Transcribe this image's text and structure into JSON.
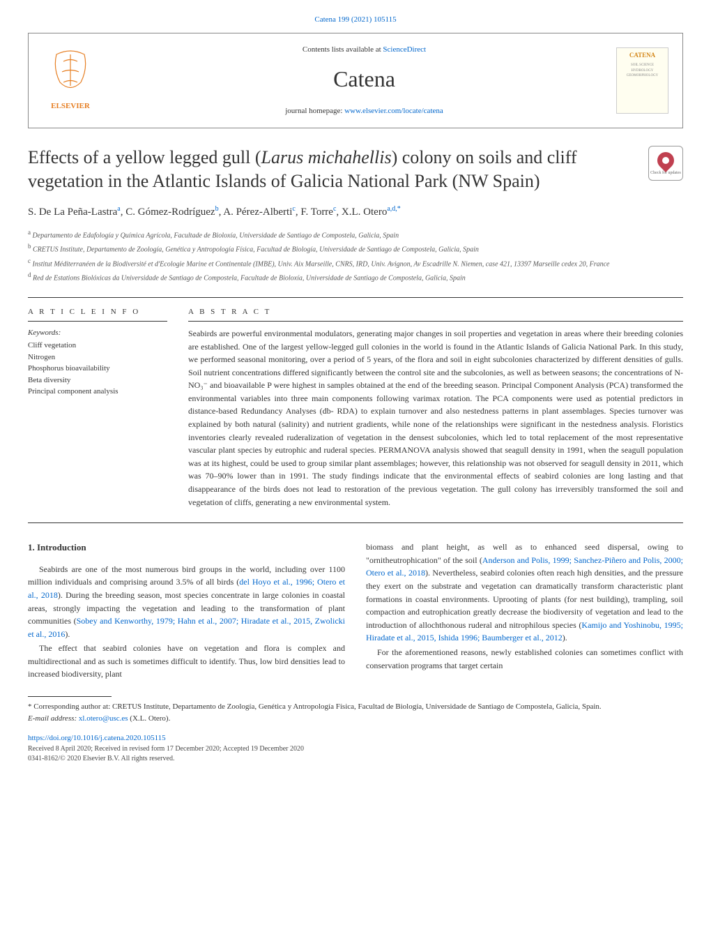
{
  "topRef": "Catena 199 (2021) 105115",
  "header": {
    "contentsPrefix": "Contents lists available at ",
    "contentsLink": "ScienceDirect",
    "journal": "Catena",
    "homepagePrefix": "journal homepage: ",
    "homepageLink": "www.elsevier.com/locate/catena",
    "publisherLogo": "ELSEVIER",
    "thumbTitle": "CATENA"
  },
  "checkUpdates": "Check for updates",
  "title": {
    "pre": "Effects of a yellow legged gull (",
    "italic": "Larus michahellis",
    "post": ") colony on soils and cliff vegetation in the Atlantic Islands of Galicia National Park (NW Spain)"
  },
  "authors": {
    "a1": "S. De La Peña-Lastra",
    "a1sup": "a",
    "a2": ", C. Gómez-Rodríguez",
    "a2sup": "b",
    "a3": ", A. Pérez-Alberti",
    "a3sup": "c",
    "a4": ", F. Torre",
    "a4sup": "c",
    "a5": ", X.L. Otero",
    "a5sup": "a,d,*"
  },
  "affiliations": {
    "a": "Departamento de Edafología y Química Agrícola, Facultade de Bioloxía, Universidade de Santiago de Compostela, Galicia, Spain",
    "b": "CRETUS Institute, Departamento de Zoología, Genética y Antropología Física, Facultad de Biología, Universidade de Santiago de Compostela, Galicia, Spain",
    "c": "Institut Méditerranéen de la Biodiversité et d'Ecologie Marine et Continentale (IMBE), Univ. Aix Marseille, CNRS, IRD, Univ. Avignon, Av Escadrille N. Niemen, case 421, 13397 Marseille cedex 20, France",
    "d": "Red de Estations Biolóxicas da Universidade de Santiago de Compostela, Facultade de Bioloxía, Universidade de Santiago de Compostela, Galicia, Spain"
  },
  "articleInfo": {
    "label": "A R T I C L E  I N F O",
    "keywordsLabel": "Keywords:",
    "keywords": "Cliff vegetation\nNitrogen\nPhosphorus bioavailability\nBeta diversity\nPrincipal component analysis"
  },
  "abstract": {
    "label": "A B S T R A C T",
    "text": "Seabirds are powerful environmental modulators, generating major changes in soil properties and vegetation in areas where their breeding colonies are established. One of the largest yellow-legged gull colonies in the world is found in the Atlantic Islands of Galicia National Park. In this study, we performed seasonal monitoring, over a period of 5 years, of the flora and soil in eight subcolonies characterized by different densities of gulls. Soil nutrient concentrations differed significantly between the control site and the subcolonies, as well as between seasons; the concentrations of N-NO₃⁻ and bioavailable P were highest in samples obtained at the end of the breeding season. Principal Component Analysis (PCA) transformed the environmental variables into three main components following varimax rotation. The PCA components were used as potential predictors in distance-based Redundancy Analyses (db- RDA) to explain turnover and also nestedness patterns in plant assemblages. Species turnover was explained by both natural (salinity) and nutrient gradients, while none of the relationships were significant in the nestedness analysis. Floristics inventories clearly revealed ruderalization of vegetation in the densest subcolonies, which led to total replacement of the most representative vascular plant species by eutrophic and ruderal species. PERMANOVA analysis showed that seagull density in 1991, when the seagull population was at its highest, could be used to group similar plant assemblages; however, this relationship was not observed for seagull density in 2011, which was 70–90% lower than in 1991. The study findings indicate that the environmental effects of seabird colonies are long lasting and that disappearance of the birds does not lead to restoration of the previous vegetation. The gull colony has irreversibly transformed the soil and vegetation of cliffs, generating a new environmental system."
  },
  "intro": {
    "heading": "1.  Introduction",
    "p1_pre": "Seabirds are one of the most numerous bird groups in the world, including over 1100 million individuals and comprising around 3.5% of all birds (",
    "p1_link": "del Hoyo et al., 1996; Otero et al., 2018",
    "p1_mid": "). During the breeding season, most species concentrate in large colonies in coastal areas, strongly impacting the vegetation and leading to the transformation of plant communities (",
    "p1_link2": "Sobey and Kenworthy, 1979; Hahn et al., 2007; Hiradate et al., 2015, Zwolicki et al., 2016",
    "p1_post": ").",
    "p2": "The effect that seabird colonies have on vegetation and flora is complex and multidirectional and as such is sometimes difficult to identify. Thus, low bird densities lead to increased biodiversity, plant",
    "p3_pre": "biomass and plant height, as well as to enhanced seed dispersal, owing to \"ornitheutrophication\" of the soil (",
    "p3_link": "Anderson and Polis, 1999; Sanchez-Piñero and Polis, 2000; Otero et al., 2018",
    "p3_mid": "). Nevertheless, seabird colonies often reach high densities, and the pressure they exert on the substrate and vegetation can dramatically transform characteristic plant formations in coastal environments. Uprooting of plants (for nest building), trampling, soil compaction and eutrophication greatly decrease the biodiversity of vegetation and lead to the introduction of allochthonous ruderal and nitrophilous species (",
    "p3_link2": "Kamijo and Yoshinobu, 1995; Hiradate et al., 2015, Ishida 1996; Baumberger et al., 2012",
    "p3_post": ").",
    "p4": "For the aforementioned reasons, newly established colonies can sometimes conflict with conservation programs that target certain"
  },
  "footnote": {
    "corresp": "* Corresponding author at: CRETUS Institute, Departamento de Zoología, Genética y Antropología Física, Facultad de Biología, Universidade de Santiago de Compostela, Galicia, Spain.",
    "emailLabel": "E-mail address: ",
    "email": "xl.otero@usc.es",
    "emailSuffix": " (X.L. Otero)."
  },
  "footer": {
    "doi": "https://doi.org/10.1016/j.catena.2020.105115",
    "received": "Received 8 April 2020; Received in revised form 17 December 2020; Accepted 19 December 2020",
    "copyright": "0341-8162/© 2020 Elsevier B.V. All rights reserved."
  }
}
